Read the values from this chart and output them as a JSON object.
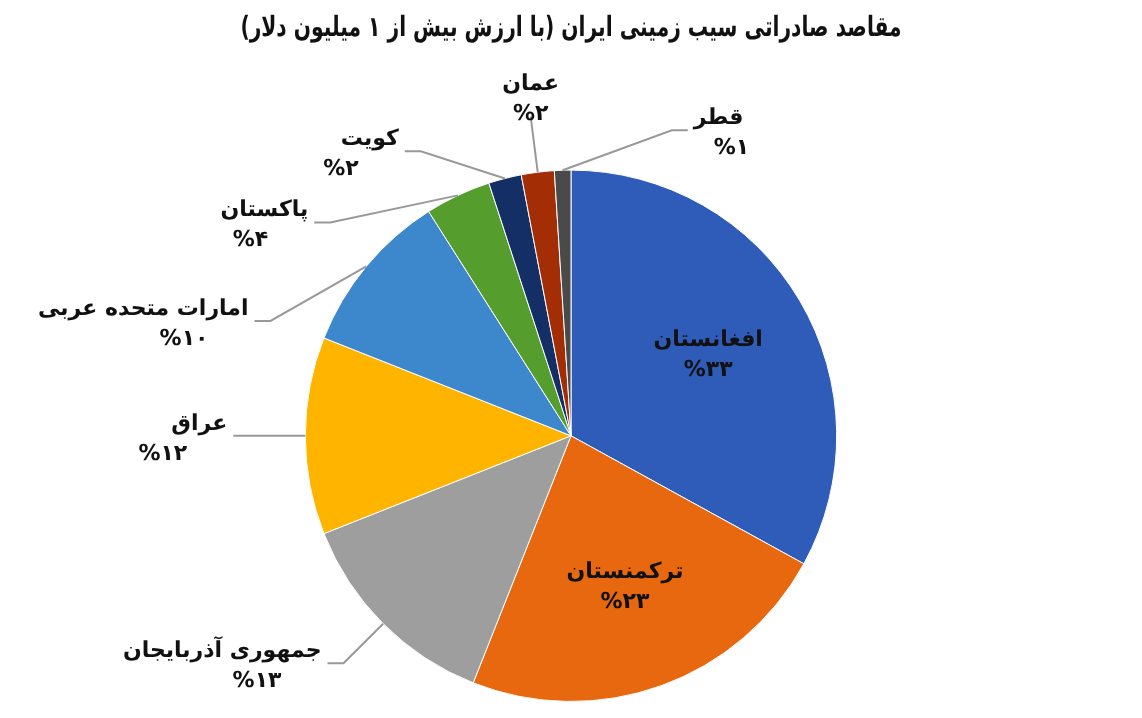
{
  "chart_data": {
    "type": "pie",
    "title": "مقاصد صادراتی سیب زمینی ایران (با ارزش بیش از ۱ میلیون دلار)",
    "categories": [
      "افغانستان",
      "ترکمنستان",
      "جمهوری آذربایجان",
      "عراق",
      "امارات متحده عربی",
      "پاکستان",
      "کویت",
      "عمان",
      "قطر"
    ],
    "values": [
      33,
      23,
      13,
      12,
      10,
      4,
      2,
      2,
      1
    ],
    "value_labels": [
      "%۳۳",
      "%۲۳",
      "%۱۳",
      "%۱۲",
      "%۱۰",
      "%۴",
      "%۲",
      "%۲",
      "%۱"
    ],
    "colors": [
      "#2e5cb8",
      "#e8680f",
      "#9e9e9e",
      "#ffb400",
      "#3d87cc",
      "#559e2e",
      "#142f66",
      "#a32e06",
      "#4a4a4a"
    ],
    "legend": false
  }
}
